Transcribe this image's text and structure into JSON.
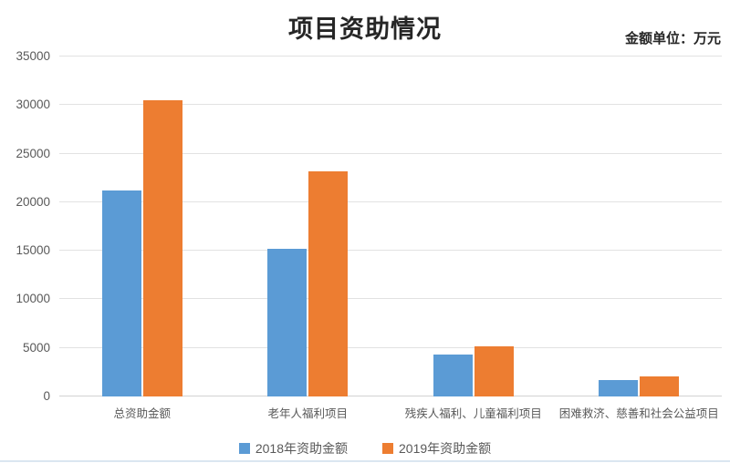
{
  "header": {
    "title": "项目资助情况",
    "unit_note": "金额单位：万元"
  },
  "chart_data": {
    "type": "bar",
    "title": "项目资助情况",
    "unit_label": "金额单位：万元",
    "categories": [
      "总资助金额",
      "老年人福利项目",
      "残疾人福利、儿童福利项目",
      "困难救济、慈善和社会公益项目"
    ],
    "series": [
      {
        "name": "2018年资助金额",
        "color": "#5B9BD5",
        "values": [
          21200,
          15200,
          4300,
          1700
        ]
      },
      {
        "name": "2019年资助金额",
        "color": "#ED7D31",
        "values": [
          30500,
          23200,
          5200,
          2100
        ]
      }
    ],
    "xlabel": "",
    "ylabel": "",
    "ylim": [
      0,
      35000
    ],
    "yticks": [
      0,
      5000,
      10000,
      15000,
      20000,
      25000,
      30000,
      35000
    ],
    "grid": true,
    "legend_position": "bottom"
  },
  "colors": {
    "series_2018": "#5B9BD5",
    "series_2019": "#ED7D31",
    "gridline": "#e2e2e2",
    "axis_text": "#595959",
    "title_text": "#262626",
    "bottom_rule": "#dbe6f1"
  }
}
